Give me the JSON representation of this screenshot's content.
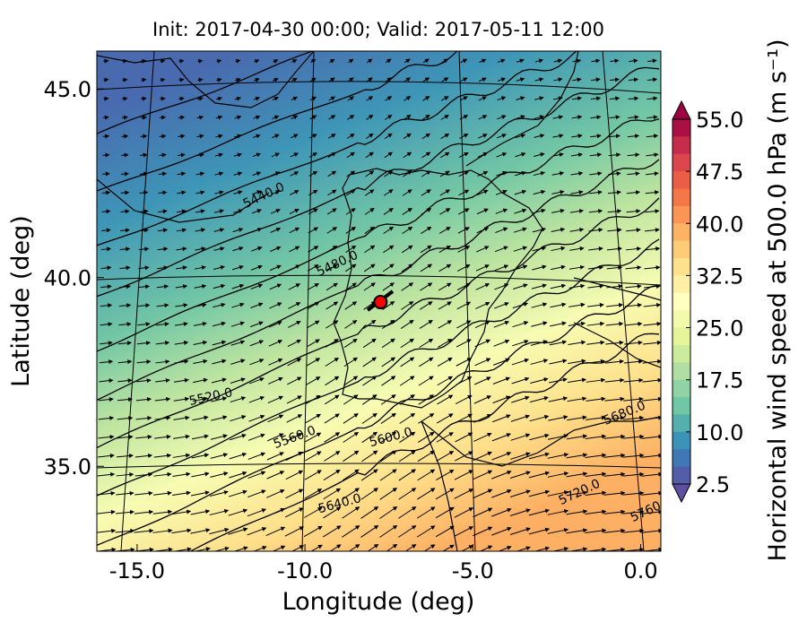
{
  "chart_data": {
    "type": "map",
    "title": "Init: 2017-04-30 00:00; Valid: 2017-05-11 12:00",
    "x_label": "Longitude (deg)",
    "y_label": "Latitude (deg)",
    "xlim": [
      -16.2,
      0.6
    ],
    "ylim": [
      32.75,
      46.0
    ],
    "xticks": [
      {
        "value": -15,
        "label": "-15.0"
      },
      {
        "value": -10,
        "label": "-10.0"
      },
      {
        "value": -5,
        "label": "-5.0"
      },
      {
        "value": 0,
        "label": "0.0"
      }
    ],
    "yticks": [
      {
        "value": 35,
        "label": "35.0"
      },
      {
        "value": 40,
        "label": "40.0"
      },
      {
        "value": 45,
        "label": "45.0"
      }
    ],
    "colorbar": {
      "label": "Horizontal wind speed at 500.0 hPa (m s⁻¹)",
      "lim": [
        2.5,
        55
      ],
      "step": 2.5,
      "ticks": [
        2.5,
        {
          "value": 10,
          "label": "10.0"
        },
        17.5,
        {
          "value": 25,
          "label": "25.0"
        },
        32.5,
        {
          "value": 40,
          "label": "40.0"
        },
        47.5,
        {
          "value": 55,
          "label": "55.0"
        }
      ],
      "colormap": [
        "#5e4fa2",
        "#3288bd",
        "#66c2a5",
        "#abdda4",
        "#e6f598",
        "#ffffbf",
        "#fee08b",
        "#fdae61",
        "#f46d43",
        "#d53e4f",
        "#9e0142"
      ]
    },
    "contour_labels": [
      "5440.0",
      "5480.0",
      "5520.0",
      "5560.0",
      "5600.0",
      "5640.0",
      "5680.0",
      "5720.0",
      "5760.0"
    ],
    "marker": {
      "x": -7.75,
      "y": 39.35,
      "color": "#ff0000"
    }
  }
}
